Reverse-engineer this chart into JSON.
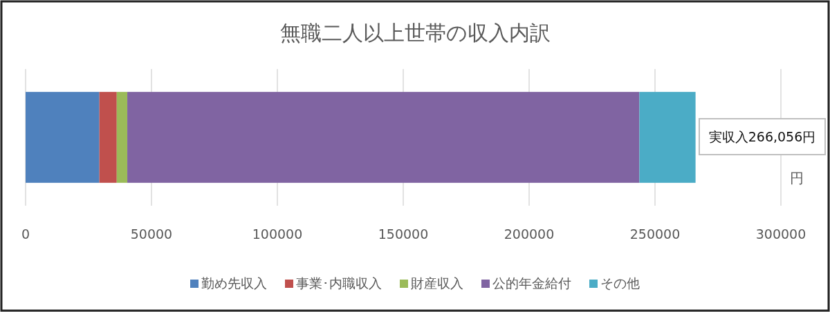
{
  "chart_data": {
    "type": "bar",
    "title": "無職二人以上世帯の収入内訳",
    "orientation": "horizontal",
    "stacked": true,
    "categories": [
      null
    ],
    "series": [
      {
        "name": "勤め先収入",
        "color": "#4f81bd",
        "values": [
          29300
        ]
      },
      {
        "name": "事業･内職収入",
        "color": "#c0504d",
        "values": [
          6900
        ]
      },
      {
        "name": "財産収入",
        "color": "#9bbb59",
        "values": [
          4200
        ]
      },
      {
        "name": "公的年金給付",
        "color": "#8064a2",
        "values": [
          203400
        ]
      },
      {
        "name": "その他",
        "color": "#4bacc6",
        "values": [
          22300
        ]
      }
    ],
    "xlim": [
      0,
      300000
    ],
    "xticks": [
      0,
      50000,
      100000,
      150000,
      200000,
      250000,
      300000
    ],
    "xlabel": "円",
    "grid": "x",
    "legend": "bottom",
    "tick_labels": "x",
    "annotations": [
      "実収入266,056円"
    ]
  }
}
